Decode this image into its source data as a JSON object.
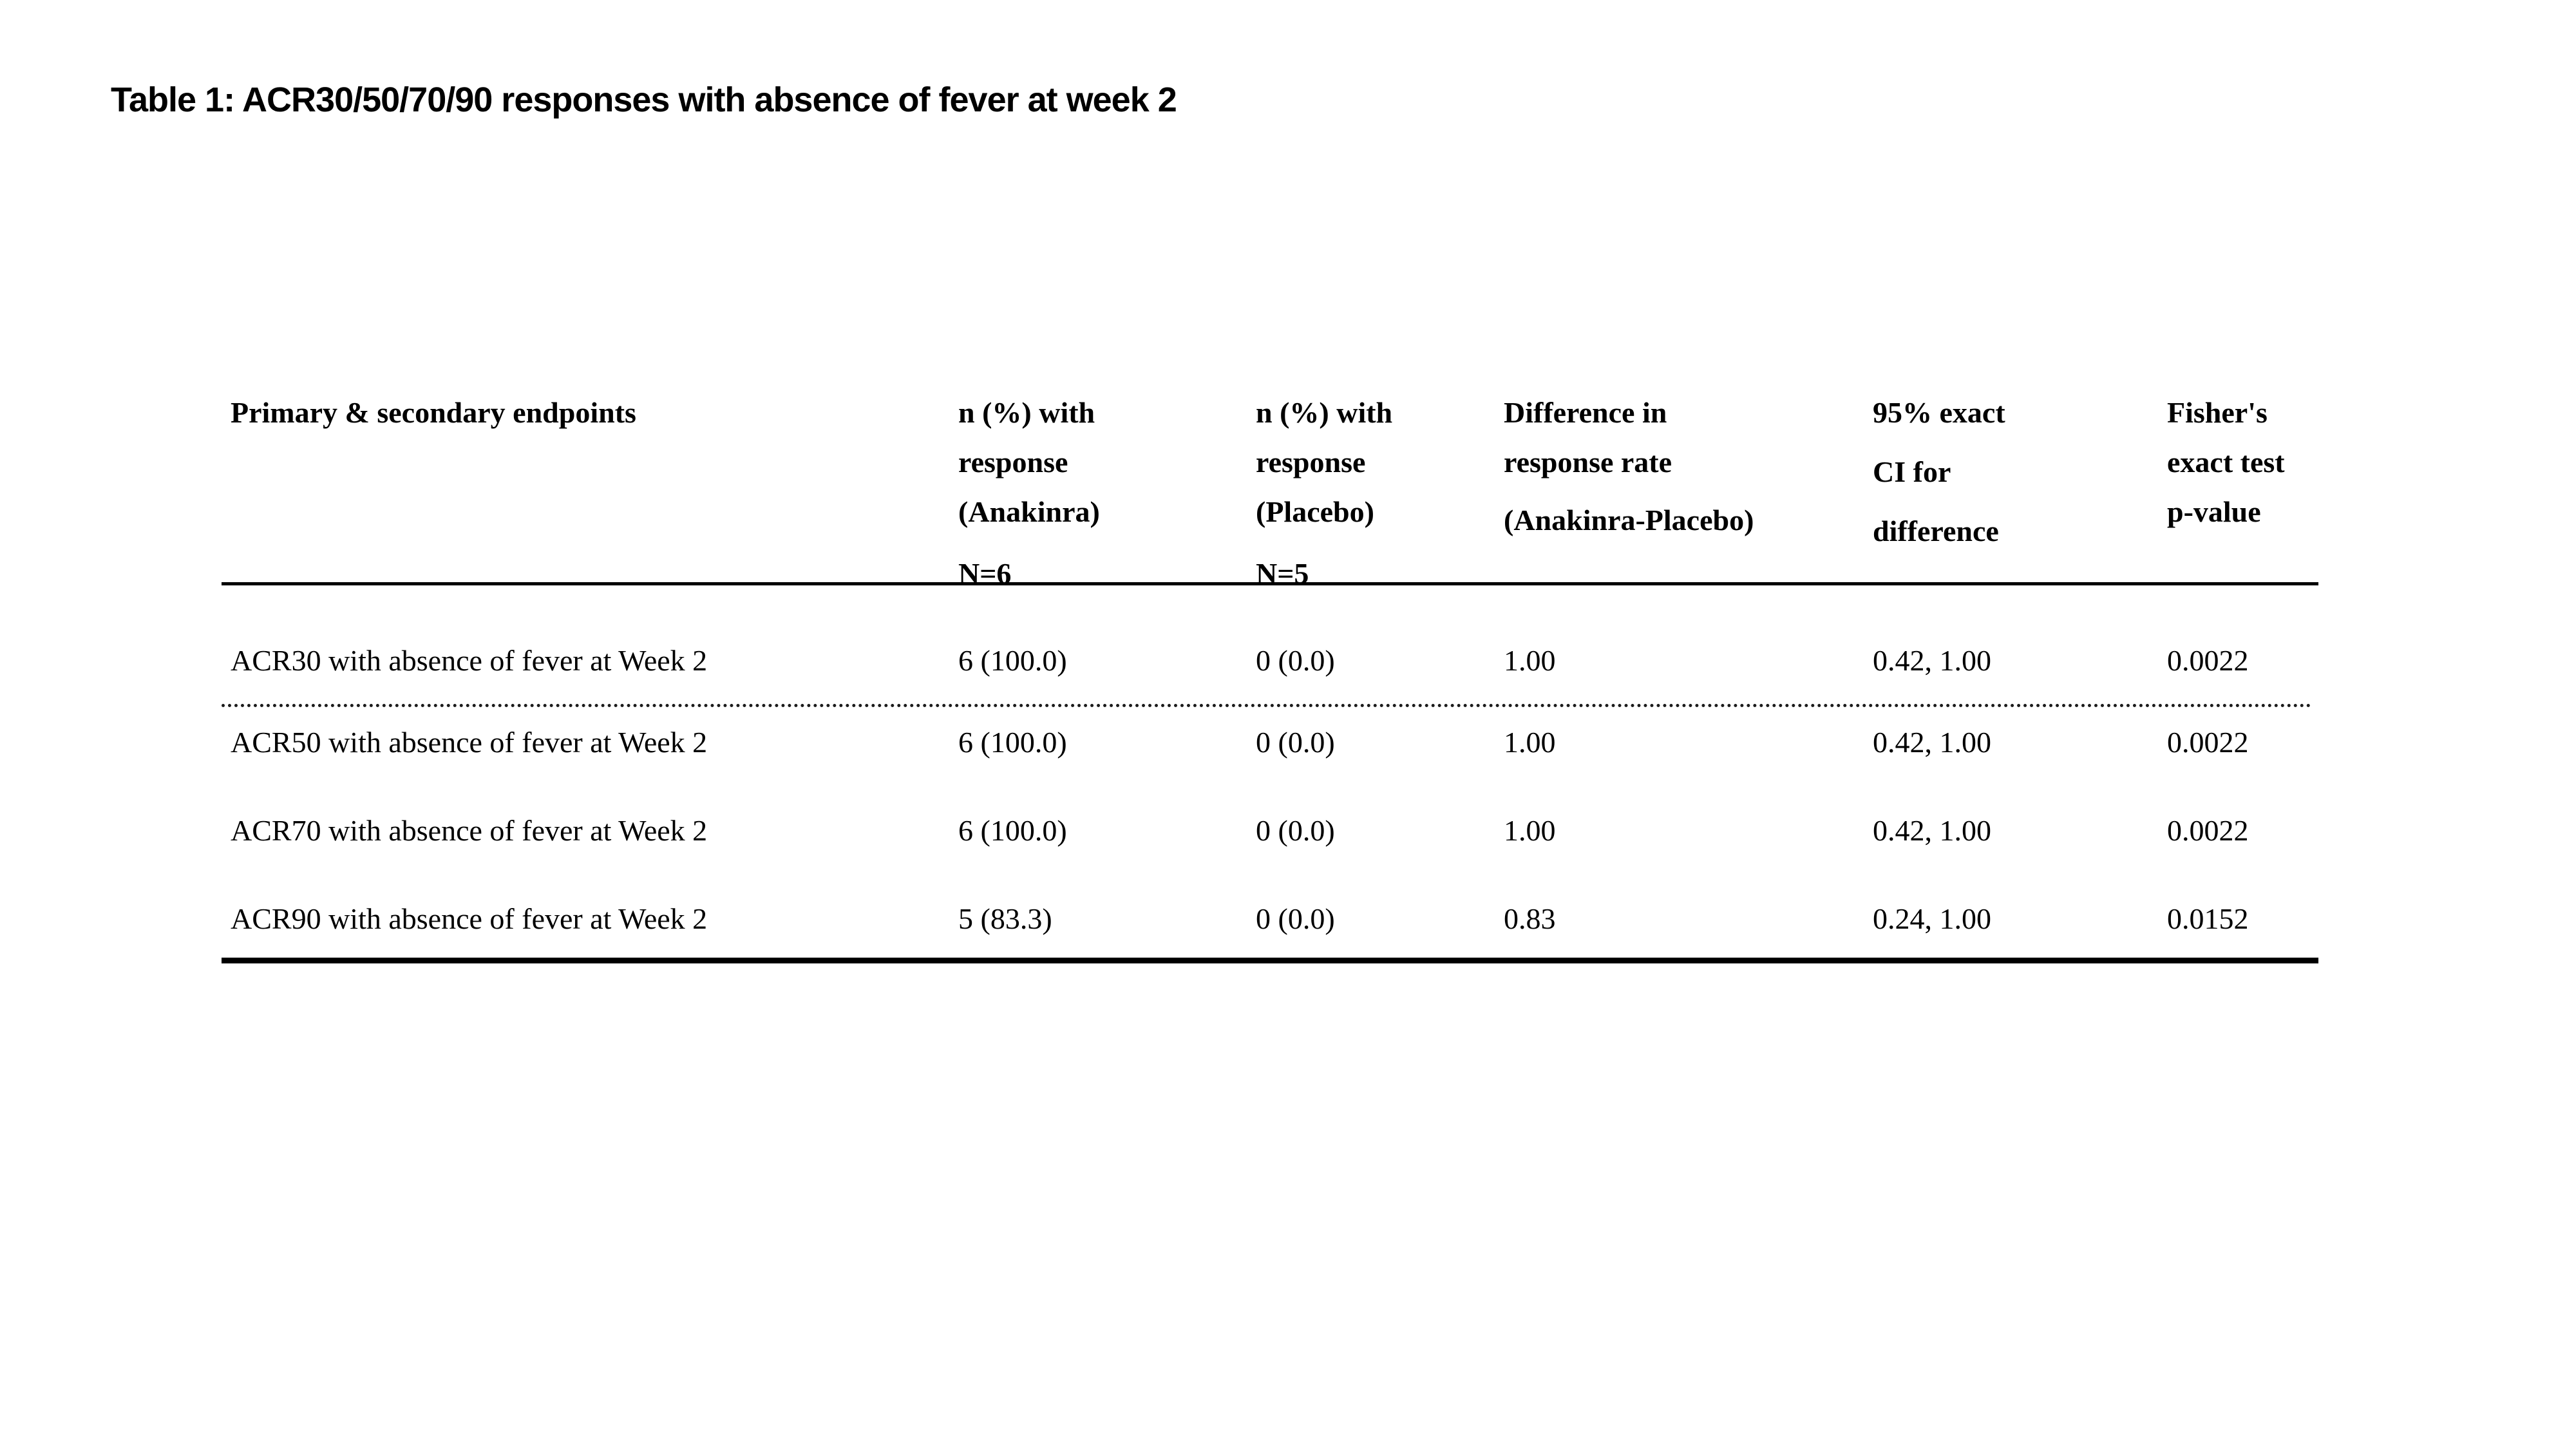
{
  "page": {
    "background_color": "#ffffff",
    "text_color": "#000000"
  },
  "title": "Table 1: ACR30/50/70/90 responses with absence of fever at week 2",
  "table": {
    "header": {
      "endpoints": "Primary & secondary endpoints",
      "anakinra": {
        "lines": [
          "n (%) with",
          "response",
          "(Anakinra)"
        ],
        "n": "N=6"
      },
      "placebo": {
        "lines": [
          "n (%) with",
          "response",
          "(Placebo)"
        ],
        "n": "N=5"
      },
      "difference": {
        "lines": [
          "Difference in",
          "response rate",
          "(Anakinra-Placebo)"
        ]
      },
      "ci": {
        "lines": [
          "95% exact",
          "CI for",
          "difference"
        ]
      },
      "fisher": {
        "lines": [
          "Fisher's",
          "exact test",
          "p-value"
        ]
      }
    },
    "rows": [
      {
        "endpoint": "ACR30 with absence of fever at Week 2",
        "anakinra": "6 (100.0)",
        "placebo": "0 (0.0)",
        "difference": "1.00",
        "ci": "0.42, 1.00",
        "p": "0.0022"
      },
      {
        "endpoint": "ACR50 with absence of fever at Week 2",
        "anakinra": "6 (100.0)",
        "placebo": "0 (0.0)",
        "difference": "1.00",
        "ci": "0.42, 1.00",
        "p": "0.0022"
      },
      {
        "endpoint": "ACR70 with absence of fever at Week 2",
        "anakinra": "6 (100.0)",
        "placebo": "0 (0.0)",
        "difference": "1.00",
        "ci": "0.42, 1.00",
        "p": "0.0022"
      },
      {
        "endpoint": "ACR90 with absence of fever at Week 2",
        "anakinra": "5 (83.3)",
        "placebo": "0 (0.0)",
        "difference": "0.83",
        "ci": "0.24, 1.00",
        "p": "0.0152"
      }
    ]
  }
}
